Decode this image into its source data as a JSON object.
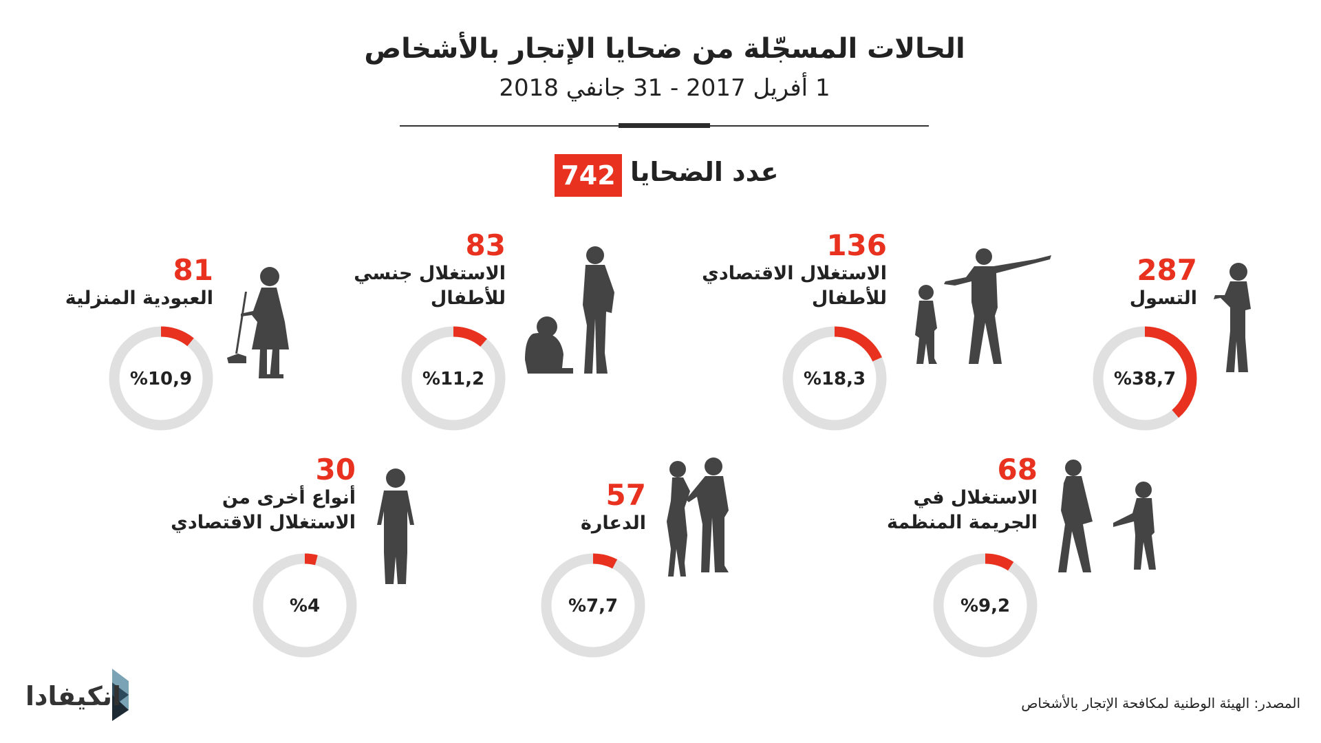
{
  "header": {
    "title": "الحالات المسجّلة من ضحايا الإتجار بالأشخاص",
    "subtitle": "1 أفريل 2017 - 31 جانفي 2018"
  },
  "total": {
    "label": "عدد الضحايا",
    "value": "742"
  },
  "colors": {
    "accent": "#e8321f",
    "track": "#e0e0e0",
    "silhouette": "#444444"
  },
  "chart_data": {
    "type": "pie",
    "title": "الحالات المسجّلة من ضحايا الإتجار بالأشخاص",
    "categories": [
      {
        "count": "287",
        "label": [
          "التسول"
        ],
        "percent": 38.7,
        "percent_text": "%38,7"
      },
      {
        "count": "136",
        "label": [
          "الاستغلال الاقتصادي",
          "للأطفال"
        ],
        "percent": 18.3,
        "percent_text": "%18,3"
      },
      {
        "count": "83",
        "label": [
          "الاستغلال جنسي",
          "للأطفال"
        ],
        "percent": 11.2,
        "percent_text": "%11,2"
      },
      {
        "count": "81",
        "label": [
          "العبودية المنزلية"
        ],
        "percent": 10.9,
        "percent_text": "%10,9"
      },
      {
        "count": "68",
        "label": [
          "الاستغلال في",
          "الجريمة المنظمة"
        ],
        "percent": 9.2,
        "percent_text": "%9,2"
      },
      {
        "count": "57",
        "label": [
          "الدعارة"
        ],
        "percent": 7.7,
        "percent_text": "%7,7"
      },
      {
        "count": "30",
        "label": [
          "أنواع أخرى من",
          "الاستغلال الاقتصادي"
        ],
        "percent": 4,
        "percent_text": "%4"
      }
    ]
  },
  "footer": {
    "source": "المصدر: الهيئة الوطنية لمكافحة الإتجار بالأشخاص",
    "logo": "انكيفادا"
  }
}
